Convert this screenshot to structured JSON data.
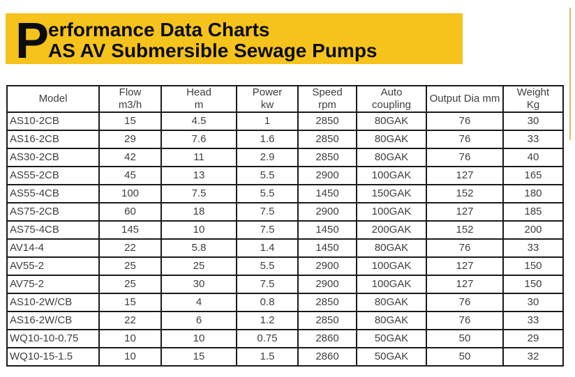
{
  "banner": {
    "drop_cap": "P",
    "title_rest": "erformance Data Charts",
    "subtitle": "AS AV Submersible Sewage Pumps",
    "bg_color": "#F5C31B",
    "text_color": "#0c0c0c"
  },
  "page": {
    "edge_line_color": "#D8BC68",
    "background_color": "#ffffff"
  },
  "table": {
    "columns": [
      {
        "line1": "Model",
        "line2": ""
      },
      {
        "line1": "Flow",
        "line2": "m3/h"
      },
      {
        "line1": "Head",
        "line2": "m"
      },
      {
        "line1": "Power",
        "line2": "kw"
      },
      {
        "line1": "Speed",
        "line2": "rpm"
      },
      {
        "line1": "Auto",
        "line2": "coupling"
      },
      {
        "line1": "Output Dia mm",
        "line2": ""
      },
      {
        "line1": "Weight",
        "line2": "Kg"
      }
    ],
    "rows": [
      [
        "AS10-2CB",
        "15",
        "4.5",
        "1",
        "2850",
        "80GAK",
        "76",
        "30"
      ],
      [
        "AS16-2CB",
        "29",
        "7.6",
        "1.6",
        "2850",
        "80GAK",
        "76",
        "33"
      ],
      [
        "AS30-2CB",
        "42",
        "11",
        "2.9",
        "2850",
        "80GAK",
        "76",
        "40"
      ],
      [
        "AS55-2CB",
        "45",
        "13",
        "5.5",
        "2900",
        "100GAK",
        "127",
        "165"
      ],
      [
        "AS55-4CB",
        "100",
        "7.5",
        "5.5",
        "1450",
        "150GAK",
        "152",
        "180"
      ],
      [
        "AS75-2CB",
        "60",
        "18",
        "7.5",
        "2900",
        "100GAK",
        "127",
        "185"
      ],
      [
        "AS75-4CB",
        "145",
        "10",
        "7.5",
        "1450",
        "200GAK",
        "152",
        "200"
      ],
      [
        "AV14-4",
        "22",
        "5.8",
        "1.4",
        "1450",
        "80GAK",
        "76",
        "33"
      ],
      [
        "AV55-2",
        "25",
        "25",
        "5.5",
        "2900",
        "100GAK",
        "127",
        "150"
      ],
      [
        "AV75-2",
        "25",
        "30",
        "7.5",
        "2900",
        "100GAK",
        "127",
        "150"
      ],
      [
        "AS10-2W/CB",
        "15",
        "4",
        "0.8",
        "2850",
        "80GAK",
        "76",
        "30"
      ],
      [
        "AS16-2W/CB",
        "22",
        "6",
        "1.2",
        "2850",
        "80GAK",
        "76",
        "33"
      ],
      [
        "WQ10-10-0.75",
        "10",
        "10",
        "0.75",
        "2860",
        "50GAK",
        "50",
        "29"
      ],
      [
        "WQ10-15-1.5",
        "10",
        "15",
        "1.5",
        "2860",
        "50GAK",
        "50",
        "32"
      ]
    ]
  }
}
